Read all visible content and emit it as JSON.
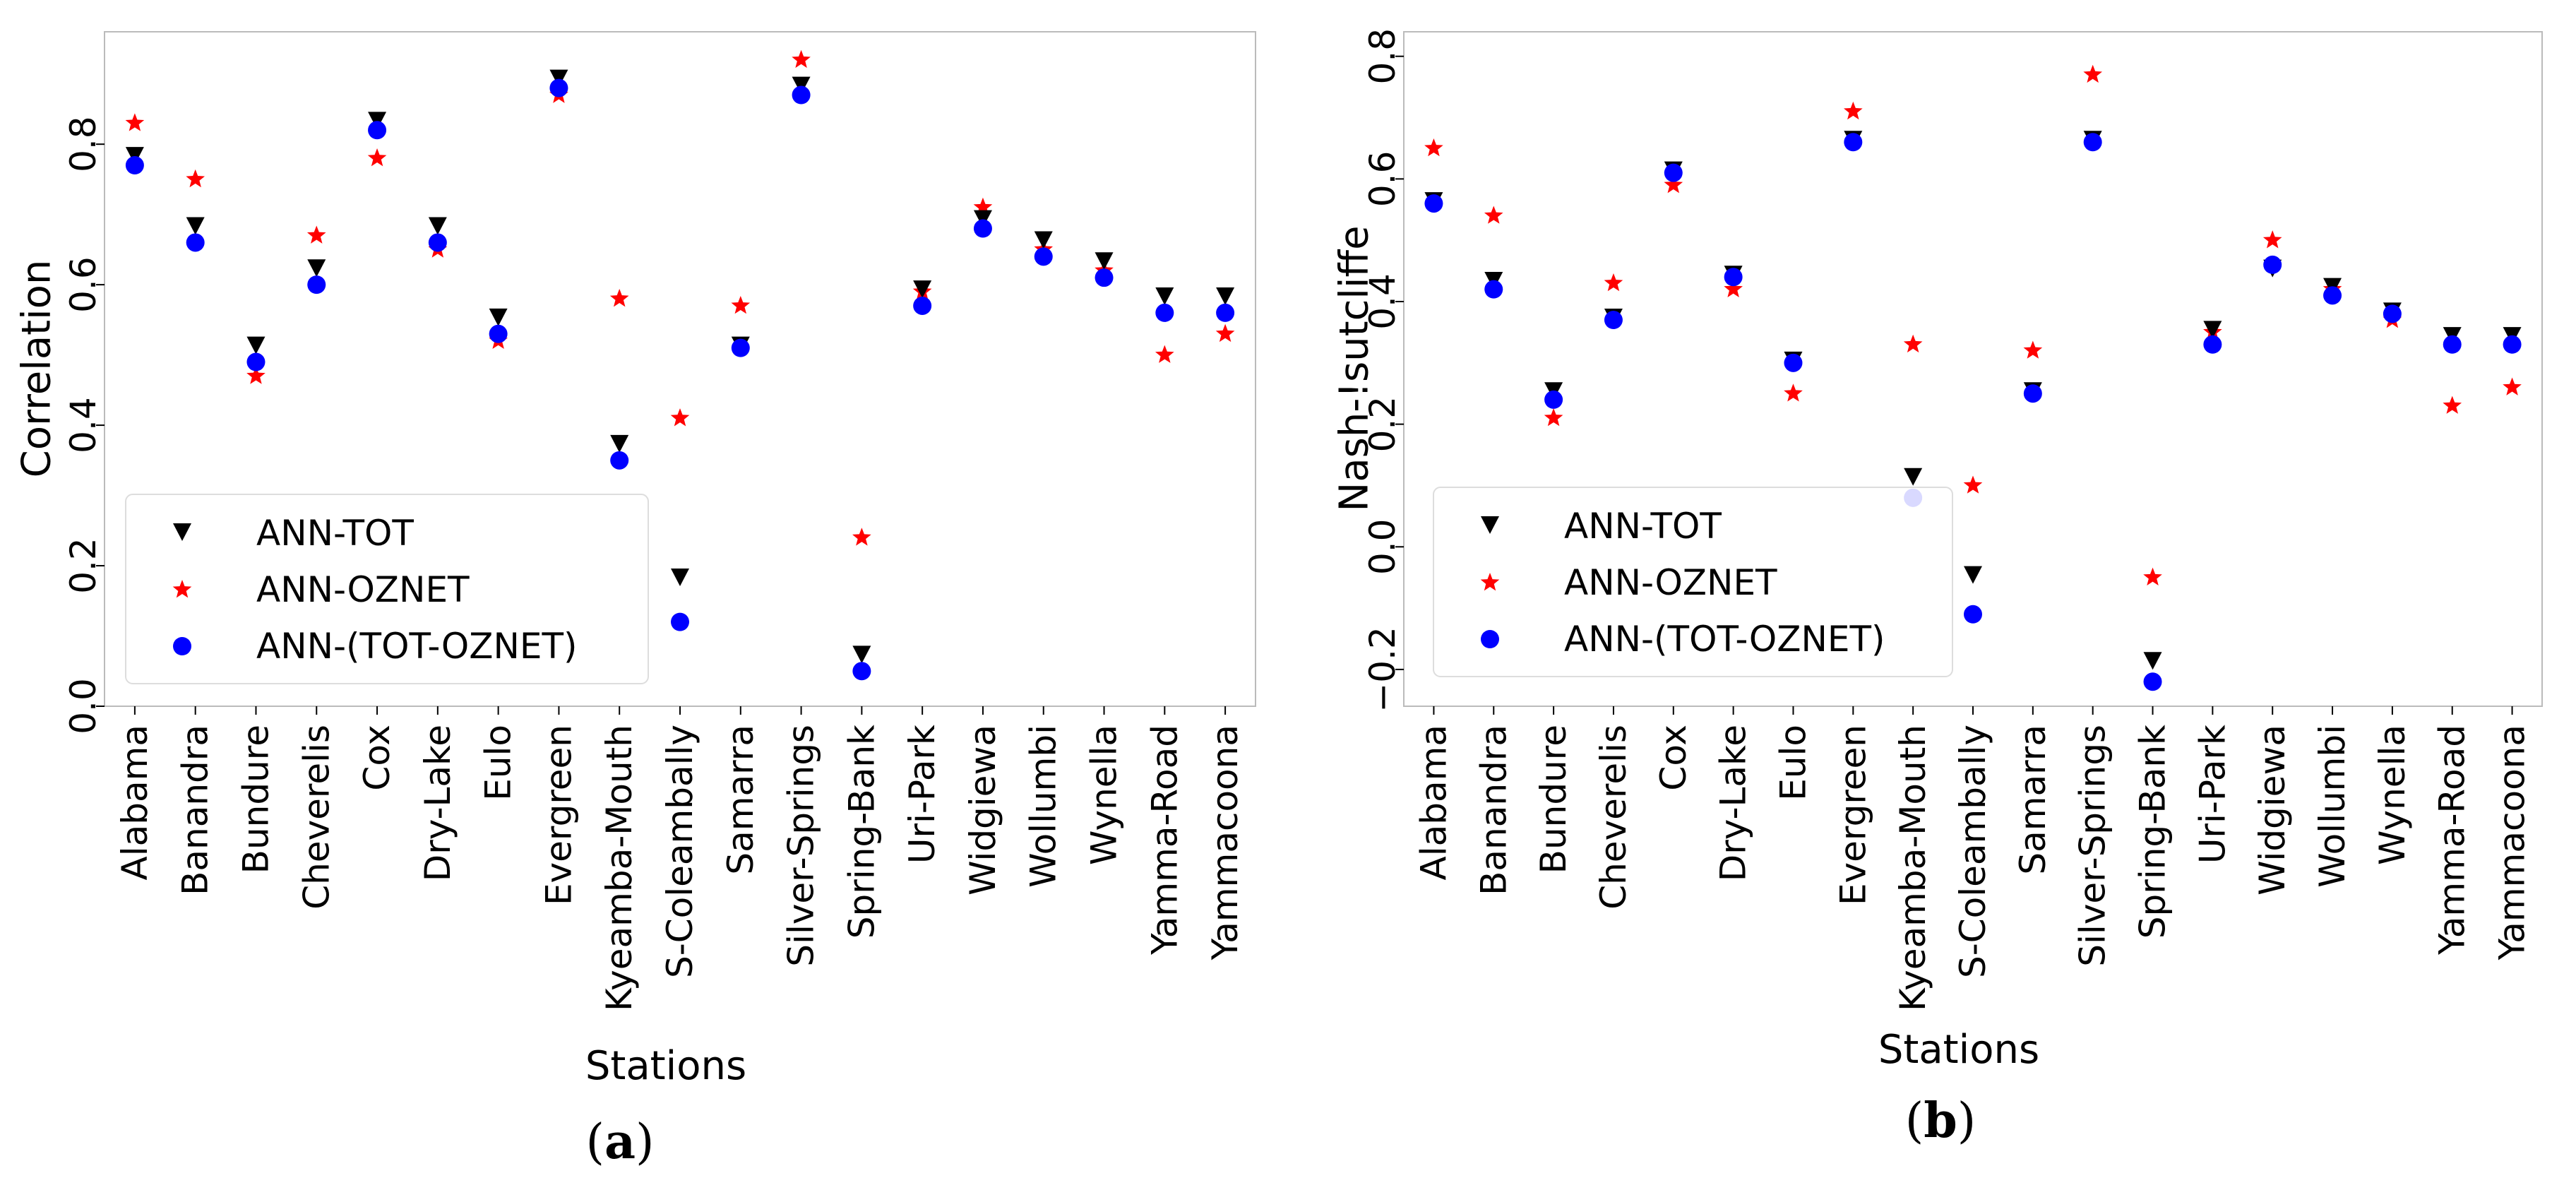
{
  "chart_data": [
    {
      "type": "scatter",
      "panel_label": "(a)",
      "panel_letter": "a",
      "xlabel": "Stations",
      "ylabel": "Correlation",
      "ylim": [
        0.0,
        0.96
      ],
      "yticks": [
        0.0,
        0.2,
        0.4,
        0.6,
        0.8
      ],
      "ytick_labels": [
        "0.0",
        "0.2",
        "0.4",
        "0.6",
        "0.8"
      ],
      "grid": false,
      "legend_position": "lower-left",
      "categories": [
        "Alabama",
        "Banandra",
        "Bundure",
        "Cheverelis",
        "Cox",
        "Dry-Lake",
        "Eulo",
        "Evergreen",
        "Kyeamba-Mouth",
        "S-Coleambally",
        "Samarra",
        "Silver-Springs",
        "Spring-Bank",
        "Uri-Park",
        "Widgiewa",
        "Wollumbi",
        "Wynella",
        "Yamma-Road",
        "Yammacoona"
      ],
      "series": [
        {
          "name": "ANN-TOT",
          "marker": "triangle-down",
          "color": "#000000",
          "values": [
            0.78,
            0.68,
            0.51,
            0.62,
            0.83,
            0.68,
            0.55,
            0.89,
            0.37,
            0.18,
            0.51,
            0.88,
            0.07,
            0.59,
            0.69,
            0.66,
            0.63,
            0.58,
            0.58
          ]
        },
        {
          "name": "ANN-OZNET",
          "marker": "star",
          "color": "#ff0000",
          "values": [
            0.83,
            0.75,
            0.47,
            0.67,
            0.78,
            0.65,
            0.52,
            0.87,
            0.58,
            0.41,
            0.57,
            0.92,
            0.24,
            0.59,
            0.71,
            0.65,
            0.62,
            0.5,
            0.53
          ]
        },
        {
          "name": "ANN-(TOT-OZNET)",
          "marker": "circle",
          "color": "#0000ff",
          "values": [
            0.77,
            0.66,
            0.49,
            0.6,
            0.82,
            0.66,
            0.53,
            0.88,
            0.35,
            0.12,
            0.51,
            0.87,
            0.05,
            0.57,
            0.68,
            0.64,
            0.61,
            0.56,
            0.56
          ]
        }
      ]
    },
    {
      "type": "scatter",
      "panel_label": "(b)",
      "panel_letter": "b",
      "xlabel": "Stations",
      "ylabel": "Nash-!sutcliffe",
      "ylim": [
        -0.26,
        0.84
      ],
      "yticks": [
        -0.2,
        0.0,
        0.2,
        0.4,
        0.6,
        0.8
      ],
      "ytick_labels": [
        "−0.2",
        "0.0",
        "0.2",
        "0.4",
        "0.6",
        "0.8"
      ],
      "grid": false,
      "legend_position": "lower-left",
      "categories": [
        "Alabama",
        "Banandra",
        "Bundure",
        "Cheverelis",
        "Cox",
        "Dry-Lake",
        "Eulo",
        "Evergreen",
        "Kyeamba-Mouth",
        "S-Coleambally",
        "Samarra",
        "Silver-Springs",
        "Spring-Bank",
        "Uri-Park",
        "Widgiewa",
        "Wollumbi",
        "Wynella",
        "Yamma-Road",
        "Yammacoona"
      ],
      "series": [
        {
          "name": "ANN-TOT",
          "marker": "triangle-down",
          "color": "#000000",
          "values": [
            0.56,
            0.43,
            0.25,
            0.37,
            0.61,
            0.44,
            0.3,
            0.66,
            0.11,
            -0.05,
            0.25,
            0.66,
            -0.19,
            0.35,
            0.45,
            0.42,
            0.38,
            0.34,
            0.34
          ]
        },
        {
          "name": "ANN-OZNET",
          "marker": "star",
          "color": "#ff0000",
          "values": [
            0.65,
            0.54,
            0.21,
            0.43,
            0.59,
            0.42,
            0.25,
            0.71,
            0.33,
            0.1,
            0.32,
            0.77,
            -0.05,
            0.35,
            0.5,
            0.42,
            0.37,
            0.23,
            0.26
          ]
        },
        {
          "name": "ANN-(TOT-OZNET)",
          "marker": "circle",
          "color": "#0000ff",
          "values": [
            0.56,
            0.42,
            0.24,
            0.37,
            0.61,
            0.44,
            0.3,
            0.66,
            0.08,
            -0.11,
            0.25,
            0.66,
            -0.22,
            0.33,
            0.46,
            0.41,
            0.38,
            0.33,
            0.33
          ]
        }
      ]
    }
  ]
}
